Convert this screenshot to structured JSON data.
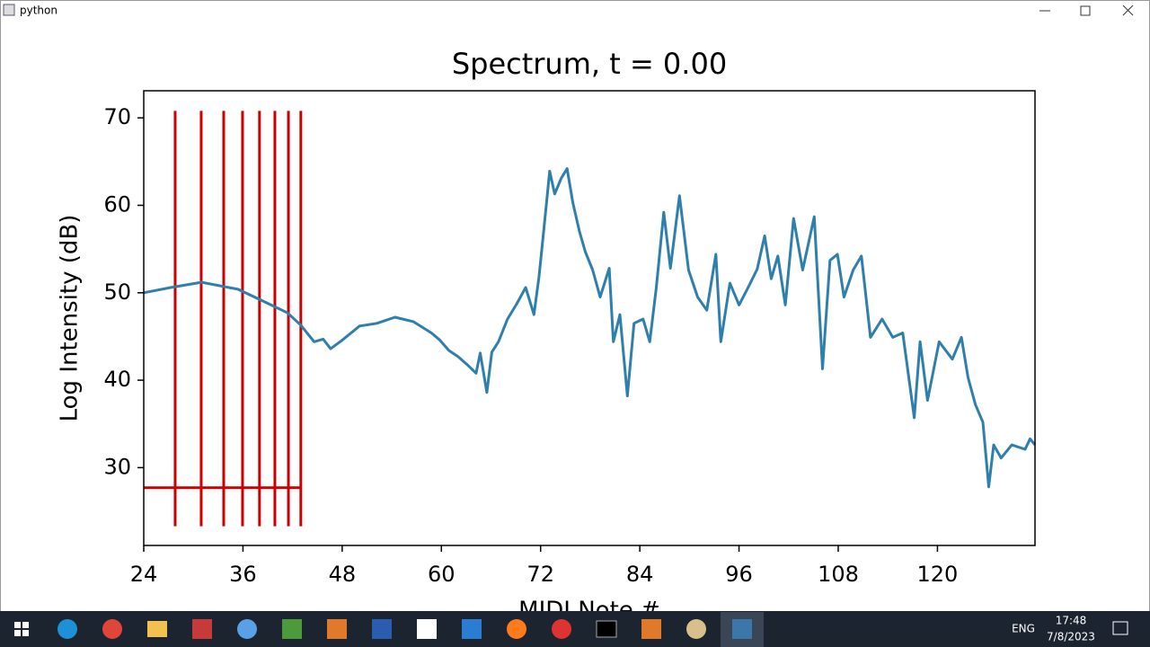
{
  "window": {
    "title": "python"
  },
  "chart_data": {
    "type": "line",
    "title": "Spectrum, t = 0.00",
    "x_label": "MIDI Note #",
    "y_label": "Log Intensity (dB)",
    "xlim": [
      24,
      131.8
    ],
    "ylim": [
      21.1,
      73.1
    ],
    "xticks": [
      24,
      36,
      48,
      60,
      72,
      84,
      96,
      108,
      120
    ],
    "yticks": [
      30,
      40,
      50,
      60,
      70
    ],
    "series": [
      {
        "color": "#2e7fab",
        "x": [
          24,
          27.3,
          31.0,
          35.4,
          38.1,
          41.4,
          43.0,
          44.6,
          45.7,
          46.6,
          47.9,
          50.1,
          52.2,
          54.4,
          56.6,
          58.8,
          59.8,
          60.9,
          62.0,
          63.1,
          64.2,
          64.7,
          65.5,
          66.1,
          66.9,
          68.0,
          69.1,
          70.2,
          71.2,
          71.8,
          72.4,
          73.1,
          73.7,
          74.5,
          75.2,
          75.9,
          76.7,
          77.4,
          78.3,
          79.2,
          80.3,
          80.8,
          81.6,
          82.5,
          83.3,
          84.4,
          85.2,
          86.0,
          86.9,
          87.7,
          88.8,
          89.9,
          91.0,
          92.1,
          93.2,
          93.8,
          94.9,
          96.0,
          97.1,
          98.2,
          99.1,
          99.9,
          100.7,
          101.6,
          102.6,
          103.7,
          105.1,
          106.1,
          107.0,
          107.9,
          108.7,
          109.8,
          110.8,
          111.9,
          113.3,
          114.6,
          115.8,
          117.2,
          117.9,
          118.8,
          120.2,
          121.8,
          122.9,
          123.7,
          124.6,
          125.5,
          126.2,
          126.8,
          127.7,
          129.0,
          130.6,
          131.2,
          131.8
        ],
        "values": [
          50.0,
          50.6,
          51.2,
          50.4,
          49.2,
          47.7,
          46.3,
          44.4,
          44.7,
          43.6,
          44.5,
          46.2,
          46.5,
          47.2,
          46.7,
          45.4,
          44.6,
          43.4,
          42.7,
          41.8,
          40.8,
          43.1,
          38.6,
          43.2,
          44.4,
          47.0,
          48.7,
          50.6,
          47.5,
          51.8,
          57.3,
          63.9,
          61.3,
          63.1,
          64.2,
          60.3,
          57.0,
          54.7,
          52.6,
          49.5,
          52.8,
          44.4,
          47.5,
          38.2,
          46.5,
          47.0,
          44.4,
          50.6,
          59.2,
          52.8,
          61.1,
          52.6,
          49.5,
          48.0,
          54.4,
          44.4,
          51.1,
          48.6,
          50.6,
          52.7,
          56.5,
          51.6,
          54.2,
          48.6,
          58.5,
          52.6,
          58.7,
          41.3,
          53.7,
          54.4,
          49.5,
          52.6,
          54.2,
          44.9,
          47.0,
          44.9,
          45.4,
          35.7,
          44.4,
          37.7,
          44.4,
          42.4,
          44.9,
          40.3,
          37.2,
          35.2,
          27.8,
          32.6,
          31.1,
          32.6,
          32.1,
          33.3,
          32.6
        ]
      }
    ],
    "vlines": {
      "color": "#cc0000",
      "x": [
        27.8,
        30.95,
        33.67,
        35.95,
        38.0,
        39.86,
        41.5,
        43.0
      ],
      "ymin": 23.3,
      "ymax": 70.8
    },
    "hline": {
      "color": "#cc0000",
      "y": 27.7,
      "xmin": 24,
      "xmax": 43
    }
  },
  "taskbar": {
    "language": "ENG",
    "time": "17:48",
    "date": "7/8/2023"
  }
}
